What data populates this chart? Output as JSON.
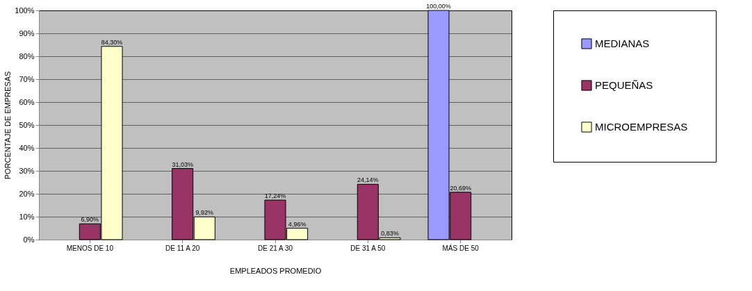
{
  "chart_data": {
    "type": "bar",
    "xlabel": "EMPLEADOS PROMEDIO",
    "ylabel": "PORCENTAJE DE EMPRESAS",
    "categories": [
      "MENOS DE 10",
      "DE 11 A 20",
      "DE 21 A 30",
      "DE 31 A 50",
      "MÁS DE 50"
    ],
    "series": [
      {
        "name": "MEDIANAS",
        "color": "#9999ff",
        "values": [
          null,
          null,
          null,
          null,
          100.0
        ],
        "value_labels": [
          null,
          null,
          null,
          null,
          "100,00%"
        ]
      },
      {
        "name": "PEQUEÑAS",
        "color": "#993366",
        "values": [
          6.9,
          31.03,
          17.24,
          24.14,
          20.69
        ],
        "value_labels": [
          "6,90%",
          "31,03%",
          "17,24%",
          "24,14%",
          "20,69%"
        ]
      },
      {
        "name": "MICROEMPRESAS",
        "color": "#ffffcc",
        "values": [
          84.3,
          9.92,
          4.96,
          0.83,
          null
        ],
        "value_labels": [
          "84,30%",
          "9,92%",
          "4,96%",
          "0,83%",
          null
        ]
      }
    ],
    "ylim": [
      0,
      100
    ],
    "yticks": [
      {
        "value": 0,
        "label": "0%"
      },
      {
        "value": 10,
        "label": "10%"
      },
      {
        "value": 20,
        "label": "20%"
      },
      {
        "value": 30,
        "label": "30%"
      },
      {
        "value": 40,
        "label": "40%"
      },
      {
        "value": 50,
        "label": "50%"
      },
      {
        "value": 60,
        "label": "60%"
      },
      {
        "value": 70,
        "label": "70%"
      },
      {
        "value": 80,
        "label": "80%"
      },
      {
        "value": 90,
        "label": "90%"
      },
      {
        "value": 100,
        "label": "100%"
      }
    ],
    "grid": "y",
    "legend": "right"
  }
}
